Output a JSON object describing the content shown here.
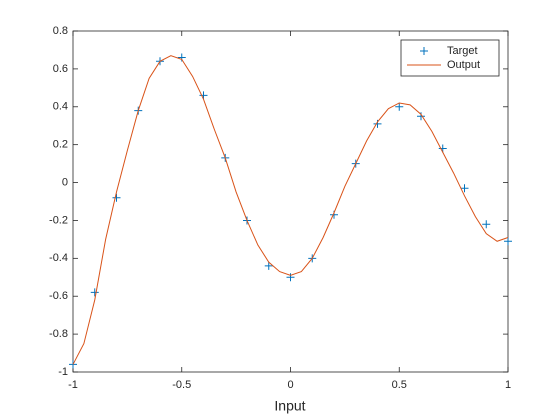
{
  "chart_data": {
    "type": "line",
    "xlabel": "Input",
    "xlim": [
      -1,
      1
    ],
    "xticks": [
      -1,
      -0.5,
      0,
      0.5,
      1
    ],
    "ylim": [
      -1,
      0.8
    ],
    "yticks": [
      -1,
      -0.8,
      -0.6,
      -0.4,
      -0.2,
      0,
      0.2,
      0.4,
      0.6,
      0.8
    ],
    "grid": false,
    "legend_location": "northeast",
    "series": [
      {
        "name": "Target",
        "color": "#0072bd",
        "marker": "+",
        "line": false,
        "x": [
          -1,
          -0.9,
          -0.8,
          -0.7,
          -0.6,
          -0.5,
          -0.4,
          -0.3,
          -0.2,
          -0.1,
          0,
          0.1,
          0.2,
          0.3,
          0.4,
          0.5,
          0.6,
          0.7,
          0.8,
          0.9,
          1
        ],
        "values": [
          -0.96,
          -0.58,
          -0.08,
          0.38,
          0.64,
          0.66,
          0.46,
          0.13,
          -0.2,
          -0.44,
          -0.5,
          -0.4,
          -0.17,
          0.1,
          0.31,
          0.4,
          0.35,
          0.18,
          -0.03,
          -0.22,
          -0.31
        ]
      },
      {
        "name": "Output",
        "color": "#d95319",
        "marker": null,
        "line": true,
        "x": [
          -1,
          -0.95,
          -0.9,
          -0.85,
          -0.8,
          -0.75,
          -0.7,
          -0.65,
          -0.6,
          -0.55,
          -0.5,
          -0.45,
          -0.4,
          -0.35,
          -0.3,
          -0.25,
          -0.2,
          -0.15,
          -0.1,
          -0.05,
          0,
          0.05,
          0.1,
          0.15,
          0.2,
          0.25,
          0.3,
          0.35,
          0.4,
          0.45,
          0.5,
          0.55,
          0.6,
          0.65,
          0.7,
          0.75,
          0.8,
          0.85,
          0.9,
          0.95,
          1
        ],
        "values": [
          -0.96,
          -0.85,
          -0.62,
          -0.3,
          -0.05,
          0.17,
          0.38,
          0.55,
          0.64,
          0.67,
          0.65,
          0.56,
          0.44,
          0.28,
          0.13,
          -0.05,
          -0.2,
          -0.33,
          -0.42,
          -0.47,
          -0.49,
          -0.47,
          -0.4,
          -0.29,
          -0.16,
          -0.02,
          0.1,
          0.22,
          0.32,
          0.39,
          0.42,
          0.41,
          0.36,
          0.27,
          0.16,
          0.05,
          -0.07,
          -0.18,
          -0.27,
          -0.31,
          -0.29
        ]
      }
    ]
  }
}
